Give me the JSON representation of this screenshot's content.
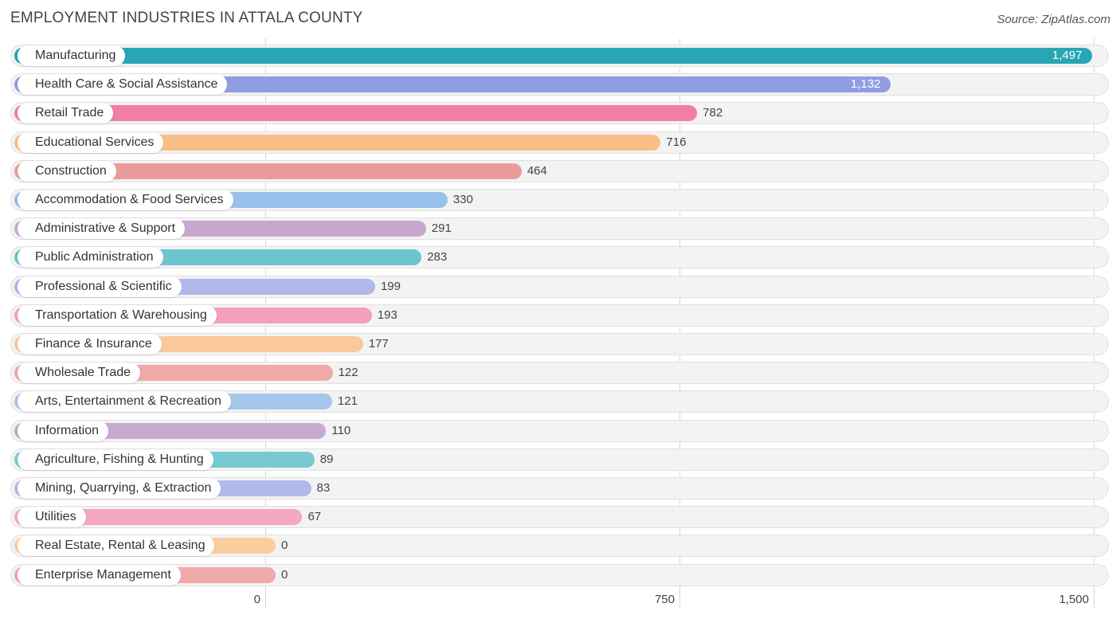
{
  "title": "EMPLOYMENT INDUSTRIES IN ATTALA COUNTY",
  "source": "Source: ZipAtlas.com",
  "chart_data": {
    "type": "bar",
    "orientation": "horizontal",
    "title": "EMPLOYMENT INDUSTRIES IN ATTALA COUNTY",
    "xlim": [
      0,
      1500
    ],
    "xticks": [
      0,
      750,
      1500
    ],
    "xtick_labels": [
      "0",
      "750",
      "1,500"
    ],
    "categories": [
      "Manufacturing",
      "Health Care & Social Assistance",
      "Retail Trade",
      "Educational Services",
      "Construction",
      "Accommodation & Food Services",
      "Administrative & Support",
      "Public Administration",
      "Professional & Scientific",
      "Transportation & Warehousing",
      "Finance & Insurance",
      "Wholesale Trade",
      "Arts, Entertainment & Recreation",
      "Information",
      "Agriculture, Fishing & Hunting",
      "Mining, Quarrying, & Extraction",
      "Utilities",
      "Real Estate, Rental & Leasing",
      "Enterprise Management"
    ],
    "values": [
      1497,
      1132,
      782,
      716,
      464,
      330,
      291,
      283,
      199,
      193,
      177,
      122,
      121,
      110,
      89,
      83,
      67,
      0,
      0
    ],
    "value_labels": [
      "1,497",
      "1,132",
      "782",
      "716",
      "464",
      "330",
      "291",
      "283",
      "199",
      "193",
      "177",
      "122",
      "121",
      "110",
      "89",
      "83",
      "67",
      "0",
      "0"
    ],
    "colors": [
      "#27a6b5",
      "#8f9ee2",
      "#f27ea6",
      "#f9be86",
      "#ea9c9a",
      "#99c0ea",
      "#c7a7cf",
      "#6cc4cf",
      "#b0b8ea",
      "#f5a0bc",
      "#f9c99b",
      "#efa9a9",
      "#a7c6ec",
      "#c7aad1",
      "#79c9d1",
      "#b3b9ea",
      "#f6a7c2",
      "#fbcd9f",
      "#f0aaaa"
    ]
  }
}
